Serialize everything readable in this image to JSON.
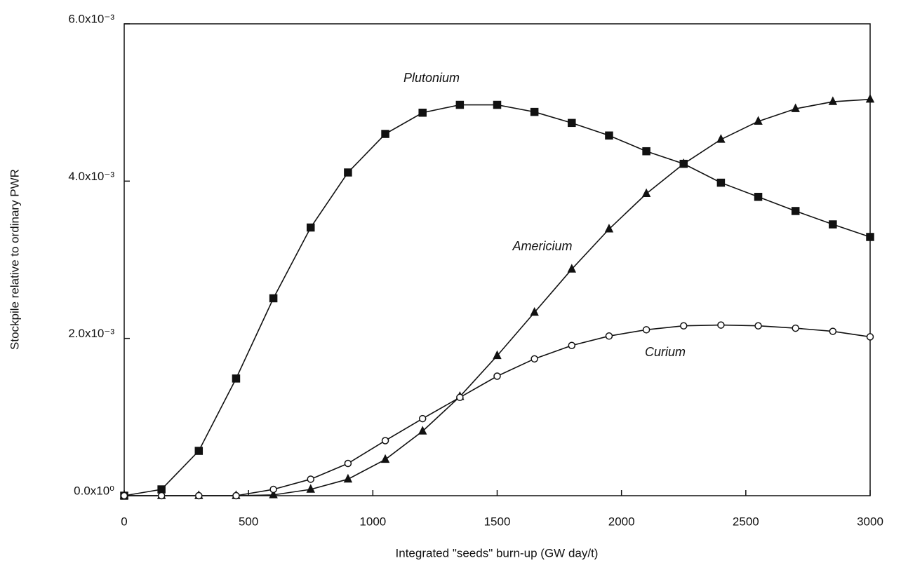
{
  "chart_data": {
    "type": "line",
    "xlabel": "Integrated \"seeds\" burn-up (GW day/t)",
    "ylabel": "Stockpile relative to ordinary PWR",
    "x": [
      0,
      150,
      300,
      450,
      600,
      750,
      900,
      1050,
      1200,
      1350,
      1500,
      1650,
      1800,
      1950,
      2100,
      2250,
      2400,
      2550,
      2700,
      2850,
      3000
    ],
    "series": [
      {
        "name": "Plutonium",
        "color": "#111111",
        "marker": "square",
        "values": [
          0,
          8e-05,
          0.00057,
          0.00149,
          0.00251,
          0.00341,
          0.00411,
          0.0046,
          0.00487,
          0.00497,
          0.00497,
          0.00488,
          0.00474,
          0.00458,
          0.00438,
          0.00422,
          0.00398,
          0.0038,
          0.00362,
          0.00345,
          0.00329
        ]
      },
      {
        "name": "Americium",
        "color": "#111111",
        "marker": "triangle",
        "values": [
          0,
          0,
          0,
          0,
          1e-05,
          8e-05,
          0.00021,
          0.00046,
          0.00082,
          0.00126,
          0.00178,
          0.00233,
          0.00288,
          0.00339,
          0.00384,
          0.00422,
          0.00453,
          0.00476,
          0.00492,
          0.00501,
          0.00504
        ]
      },
      {
        "name": "Curium",
        "color": "#111111",
        "marker": "circle",
        "values": [
          0,
          0,
          0,
          0,
          8e-05,
          0.00021,
          0.00041,
          0.0007,
          0.00098,
          0.00125,
          0.00152,
          0.00174,
          0.00191,
          0.00203,
          0.00211,
          0.00216,
          0.00217,
          0.00216,
          0.00213,
          0.00209,
          0.00202
        ]
      }
    ],
    "xlim": [
      0,
      3000
    ],
    "xticks": [
      0,
      500,
      1000,
      1500,
      2000,
      2500,
      3000
    ],
    "ylim": [
      0,
      0.006
    ],
    "yticks": [
      {
        "value": 0,
        "label": "0.0x10⁰"
      },
      {
        "value": 0.002,
        "label": "2.0x10⁻³"
      },
      {
        "value": 0.004,
        "label": "4.0x10⁻³"
      },
      {
        "value": 0.006,
        "label": "6.0x10⁻³"
      }
    ],
    "grid": false
  }
}
